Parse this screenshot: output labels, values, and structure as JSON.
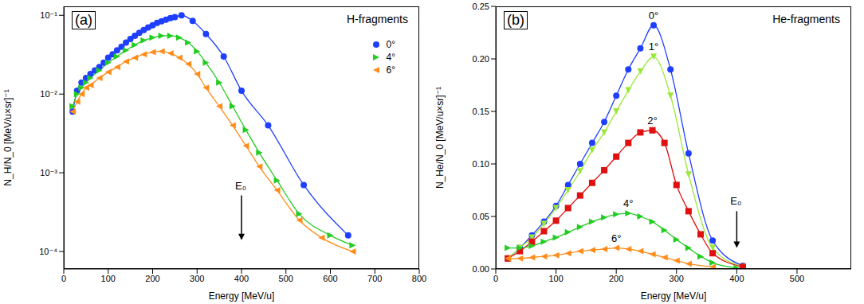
{
  "chart_data": [
    {
      "type": "line",
      "title": "H-fragments",
      "x_label": "Energy [MeV/u]",
      "y_label": "N_H/N_0 [MeV/u×sr]⁻¹",
      "log": "y",
      "grid": false,
      "legend": "upper right",
      "xlim": [
        0,
        800
      ],
      "xticks": [
        0,
        100,
        200,
        300,
        400,
        500,
        600,
        700,
        800
      ],
      "ylim": [
        6e-05,
        0.13
      ],
      "yticks": [
        {
          "value": 0.0001,
          "label": "10⁻⁴"
        },
        {
          "value": 0.001,
          "label": "10⁻³"
        },
        {
          "value": 0.01,
          "label": "10⁻²"
        },
        {
          "value": 0.1,
          "label": "10⁻¹"
        }
      ],
      "annotations": [
        {
          "text": "(a)"
        },
        {
          "text": "E₀",
          "x": 400
        }
      ],
      "series": [
        {
          "name": "0°",
          "color": "#1f3fff",
          "marker": "circle",
          "x": [
            20,
            30,
            40,
            50,
            60,
            70,
            80,
            90,
            100,
            110,
            120,
            130,
            140,
            150,
            160,
            170,
            180,
            190,
            200,
            210,
            220,
            230,
            240,
            250,
            265,
            290,
            320,
            360,
            400,
            460,
            540,
            640
          ],
          "values": [
            0.006,
            0.011,
            0.014,
            0.016,
            0.018,
            0.02,
            0.022,
            0.025,
            0.029,
            0.032,
            0.036,
            0.04,
            0.045,
            0.05,
            0.055,
            0.06,
            0.065,
            0.07,
            0.075,
            0.08,
            0.084,
            0.088,
            0.092,
            0.095,
            0.1,
            0.085,
            0.058,
            0.03,
            0.011,
            0.004,
            0.0007,
            0.00016
          ]
        },
        {
          "name": "4°",
          "color": "#22cc22",
          "marker": "triangle-right",
          "x": [
            20,
            30,
            40,
            50,
            60,
            80,
            100,
            120,
            140,
            160,
            180,
            200,
            220,
            240,
            260,
            280,
            300,
            320,
            350,
            380,
            410,
            440,
            480,
            530,
            600,
            650
          ],
          "values": [
            0.007,
            0.01,
            0.012,
            0.014,
            0.016,
            0.02,
            0.025,
            0.03,
            0.036,
            0.042,
            0.048,
            0.052,
            0.055,
            0.055,
            0.052,
            0.045,
            0.035,
            0.025,
            0.014,
            0.007,
            0.0035,
            0.0018,
            0.0008,
            0.0003,
            0.00016,
            0.00012
          ]
        },
        {
          "name": "6°",
          "color": "#ff8c1a",
          "marker": "triangle-left",
          "x": [
            20,
            30,
            40,
            50,
            60,
            80,
            100,
            120,
            140,
            160,
            180,
            200,
            220,
            240,
            260,
            280,
            300,
            320,
            350,
            380,
            410,
            440,
            480,
            530,
            580,
            650
          ],
          "values": [
            0.006,
            0.008,
            0.01,
            0.012,
            0.013,
            0.016,
            0.019,
            0.022,
            0.026,
            0.029,
            0.032,
            0.034,
            0.035,
            0.033,
            0.029,
            0.024,
            0.018,
            0.012,
            0.007,
            0.004,
            0.0022,
            0.0012,
            0.0006,
            0.00025,
            0.00015,
            0.0001
          ]
        }
      ]
    },
    {
      "type": "line",
      "title": "He-fragments",
      "x_label": "Energy [MeV/u]",
      "y_label": "N_He/N_0 [MeV/u×sr]⁻¹",
      "grid": false,
      "xlim": [
        0,
        590
      ],
      "xticks": [
        0,
        100,
        200,
        300,
        400,
        500
      ],
      "ylim": [
        0,
        0.25
      ],
      "yticks": [
        {
          "value": 0,
          "label": "0.00"
        },
        {
          "value": 0.05,
          "label": "0.05"
        },
        {
          "value": 0.1,
          "label": "0.10"
        },
        {
          "value": 0.15,
          "label": "0.15"
        },
        {
          "value": 0.2,
          "label": "0.20"
        },
        {
          "value": 0.25,
          "label": "0.25"
        }
      ],
      "annotations": [
        {
          "text": "(b)"
        },
        {
          "text": "E₀",
          "x": 400
        }
      ],
      "series": [
        {
          "name": "0°",
          "color": "#1f3fff",
          "marker": "circle",
          "x": [
            20,
            40,
            60,
            80,
            100,
            120,
            140,
            160,
            180,
            200,
            220,
            240,
            262,
            290,
            320,
            360,
            410
          ],
          "values": [
            0.01,
            0.02,
            0.032,
            0.045,
            0.06,
            0.08,
            0.1,
            0.12,
            0.14,
            0.165,
            0.19,
            0.21,
            0.232,
            0.19,
            0.11,
            0.027,
            0.003
          ]
        },
        {
          "name": "1°",
          "color": "#9be83a",
          "marker": "triangle-down",
          "x": [
            20,
            40,
            60,
            80,
            100,
            120,
            140,
            160,
            180,
            200,
            220,
            240,
            262,
            290,
            320,
            360,
            410
          ],
          "values": [
            0.01,
            0.02,
            0.03,
            0.043,
            0.058,
            0.075,
            0.093,
            0.113,
            0.13,
            0.15,
            0.17,
            0.188,
            0.202,
            0.165,
            0.09,
            0.02,
            0.002
          ]
        },
        {
          "name": "2°",
          "color": "#e01010",
          "marker": "square",
          "x": [
            20,
            40,
            60,
            80,
            100,
            120,
            140,
            160,
            180,
            200,
            220,
            240,
            260,
            280,
            300,
            320,
            340,
            360,
            410
          ],
          "values": [
            0.01,
            0.017,
            0.026,
            0.036,
            0.046,
            0.058,
            0.07,
            0.082,
            0.094,
            0.107,
            0.12,
            0.13,
            0.132,
            0.12,
            0.08,
            0.055,
            0.033,
            0.015,
            0.002
          ]
        },
        {
          "name": "4°",
          "color": "#22cc22",
          "marker": "triangle-right",
          "x": [
            20,
            40,
            60,
            80,
            100,
            120,
            140,
            160,
            180,
            200,
            220,
            240,
            260,
            280,
            300,
            320,
            340,
            360,
            400
          ],
          "values": [
            0.02,
            0.02,
            0.022,
            0.026,
            0.03,
            0.035,
            0.04,
            0.045,
            0.049,
            0.052,
            0.053,
            0.05,
            0.045,
            0.037,
            0.028,
            0.02,
            0.012,
            0.006,
            0.001
          ]
        },
        {
          "name": "6°",
          "color": "#ff8c1a",
          "marker": "triangle-left",
          "x": [
            20,
            40,
            60,
            80,
            100,
            120,
            140,
            160,
            180,
            200,
            220,
            240,
            260,
            280,
            300,
            320,
            360
          ],
          "values": [
            0.01,
            0.01,
            0.011,
            0.012,
            0.013,
            0.015,
            0.017,
            0.018,
            0.019,
            0.02,
            0.019,
            0.017,
            0.014,
            0.011,
            0.008,
            0.005,
            0.002
          ]
        }
      ]
    }
  ]
}
